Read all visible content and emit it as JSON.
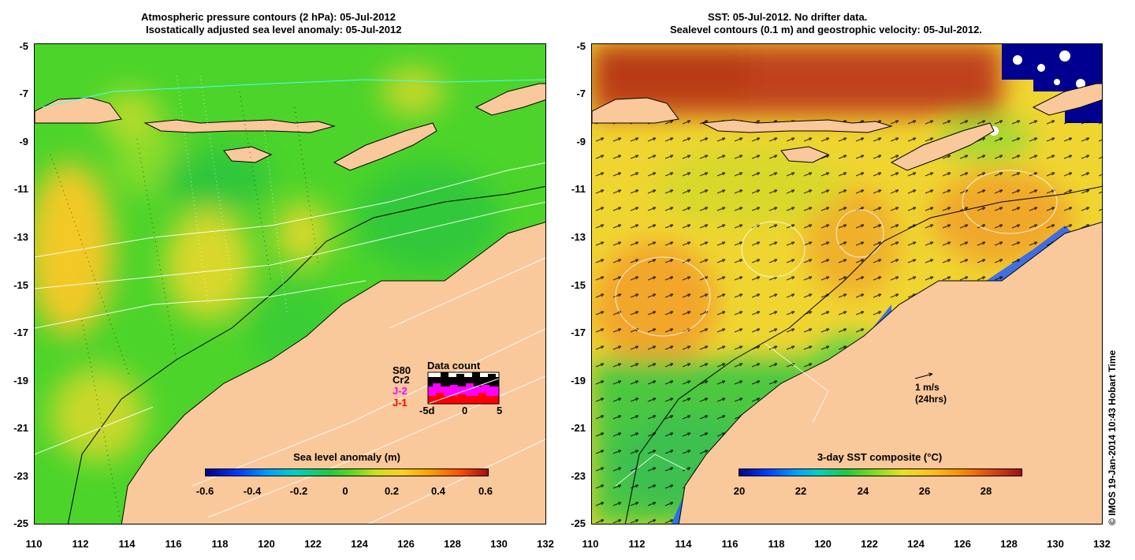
{
  "left_panel": {
    "title_line1": "Atmospheric pressure contours (2 hPa): 05-Jul-2012",
    "title_line2": "Isostatically adjusted sea level anomaly: 05-Jul-2012",
    "colorbar_label": "Sea level anomaly (m)",
    "colorbar_ticks": [
      "-0.6",
      "-0.4",
      "-0.2",
      "0",
      "0.2",
      "0.4",
      "0.6"
    ],
    "data_count": {
      "title": "Data count",
      "sat_s80": "S80",
      "sat_cr2": "Cr2",
      "sat_j2": "J-2",
      "sat_j1": "J-1",
      "axis_ticks": [
        "-5d",
        "0",
        "5"
      ]
    }
  },
  "right_panel": {
    "title_line1": "SST: 05-Jul-2012. No drifter data.",
    "title_line2": "Sealevel contours (0.1 m) and geostrophic velocity: 05-Jul-2012.",
    "colorbar_label": "3-day SST composite (°C)",
    "colorbar_ticks": [
      "20",
      "22",
      "24",
      "26",
      "28"
    ],
    "velocity_scale_value": "1 m/s",
    "velocity_scale_period": "(24hrs)"
  },
  "axes": {
    "lat_ticks": [
      "-5",
      "-7",
      "-9",
      "-11",
      "-13",
      "-15",
      "-17",
      "-19",
      "-21",
      "-23",
      "-25"
    ],
    "lon_ticks": [
      "110",
      "112",
      "114",
      "116",
      "118",
      "120",
      "122",
      "124",
      "126",
      "128",
      "130",
      "132"
    ]
  },
  "credit": "© IMOS 19-Jan-2014 10:43 Hobart Time",
  "colors": {
    "land": "#f9c89b",
    "sla_ocean": "#4cd42a",
    "sst_ocean": "#f0d531",
    "sst_warm": "#c0421a",
    "j2_color": "#ff00ff",
    "j1_color": "#ff0000"
  }
}
